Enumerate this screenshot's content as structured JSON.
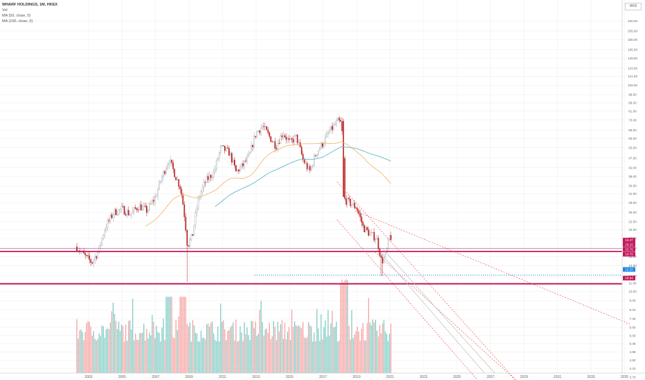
{
  "legend": {
    "title": "WHARF HOLDINGS, 1M, HKEX",
    "vol": "Vol",
    "ma50": "MA (50, close, 0)",
    "ma100": "MA (100, close, 0)"
  },
  "currency": "HKD",
  "colors": {
    "up": "#26a69a",
    "down": "#b71c1c",
    "vol_up": "#80cbc4",
    "vol_down": "#f7a1a1",
    "ma50": "#f5b971",
    "ma100": "#5fb9c9",
    "level": "#c2185b",
    "channel": "#ef5350",
    "dotted": "#1e88e5",
    "grid": "#efefef"
  },
  "chart_data": {
    "type": "candlestick",
    "x_ticks": [
      "2003",
      "2005",
      "2007",
      "2009",
      "2011",
      "2013",
      "2015",
      "2017",
      "2019",
      "2021",
      "2023",
      "2025",
      "2027",
      "2029",
      "2031",
      "2033",
      "2035"
    ],
    "price_ticks": [
      "230.00",
      "205.00",
      "185.00",
      "165.00",
      "149.00",
      "133.00",
      "121.00",
      "109.00",
      "98.00",
      "89.00",
      "81.00",
      "73.00",
      "65.00",
      "59.00",
      "53.00",
      "47.00",
      "42.00",
      "38.00",
      "34.00",
      "31.00",
      "28.00",
      "25.00",
      "22.50",
      "20.50",
      "18.50",
      "16.50",
      "15.00",
      "13.50",
      "12.00",
      "11.00",
      "10.00",
      "9.00",
      "8.10",
      "7.30",
      "6.60",
      "6.00",
      "5.46",
      "4.96",
      "4.50",
      "4.10",
      "3.70"
    ],
    "price_labels": [
      {
        "text": "16.47",
        "color": "#c2185b"
      },
      {
        "text": "16.10",
        "color": "#c2185b"
      },
      {
        "text": "15.76",
        "color": "#c2185b"
      },
      {
        "text": "14.70",
        "color": "#c2185b"
      },
      {
        "text": "12.10",
        "color": "#1e88e5"
      },
      {
        "text": "10.94",
        "color": "#c2185b"
      }
    ],
    "horizontal_levels": [
      16.47,
      16.1,
      10.94
    ],
    "dotted_level": 12.1,
    "price_range": [
      3.5,
      250
    ],
    "log_scale": true,
    "grid": true,
    "legend_position": "top-left"
  }
}
